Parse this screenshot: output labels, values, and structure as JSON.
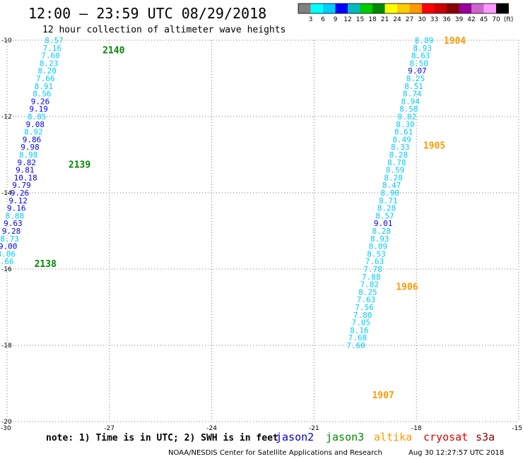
{
  "title": "12:00 – 23:59 UTC 08/29/2018",
  "subtitle": "12 hour collection of altimeter wave heights",
  "note": "note: 1) Time is in UTC; 2) SWH is in feet",
  "credit_left": "NOAA/NESDIS Center for Satellite Applications and Research",
  "credit_right": "Aug 30 12:27:57 UTC 2018",
  "satellites": [
    {
      "name": "jason2",
      "color": "#0000cc"
    },
    {
      "name": "jason3",
      "color": "#008800"
    },
    {
      "name": "altika",
      "color": "#ff9900"
    },
    {
      "name": "cryosat",
      "color": "#dd0000"
    },
    {
      "name": "s3a",
      "color": "#880000"
    }
  ],
  "colorbar": {
    "colors": [
      "#808080",
      "#00ffff",
      "#00ccff",
      "#0000ff",
      "#00bbbb",
      "#00cc00",
      "#008800",
      "#ffff00",
      "#ffcc00",
      "#ff9900",
      "#ff0000",
      "#cc0000",
      "#880000",
      "#990099",
      "#cc66cc",
      "#ff99ff",
      "#000000"
    ],
    "labels": [
      "3",
      "6",
      "9",
      "12",
      "15",
      "18",
      "21",
      "24",
      "27",
      "30",
      "33",
      "36",
      "39",
      "42",
      "45",
      "70",
      "(ft)"
    ]
  },
  "chart_data": {
    "type": "scatter",
    "xlim": [
      -30,
      -15
    ],
    "ylim": [
      -20,
      -10
    ],
    "xticks": [
      -30,
      -27,
      -24,
      -21,
      -18,
      -15
    ],
    "yticks": [
      -10,
      -12,
      -14,
      -16,
      -18,
      -20
    ],
    "grid": true,
    "tracks": [
      {
        "satellite": "jason3",
        "points": [
          {
            "x": -28.9,
            "y": -10.0,
            "v": "8.57"
          },
          {
            "x": -28.95,
            "y": -10.2,
            "v": "7.16"
          },
          {
            "x": -29.0,
            "y": -10.4,
            "v": "7.60"
          },
          {
            "x": -29.05,
            "y": -10.6,
            "v": "8.23"
          },
          {
            "x": -29.1,
            "y": -10.8,
            "v": "8.20"
          },
          {
            "x": -29.15,
            "y": -11.0,
            "v": "7.66"
          },
          {
            "x": -29.2,
            "y": -11.2,
            "v": "8.91"
          },
          {
            "x": -29.25,
            "y": -11.4,
            "v": "8.56"
          },
          {
            "x": -29.3,
            "y": -11.6,
            "v": "9.26"
          },
          {
            "x": -29.35,
            "y": -11.8,
            "v": "9.19"
          },
          {
            "x": -29.4,
            "y": -12.0,
            "v": "8.85"
          },
          {
            "x": -29.45,
            "y": -12.2,
            "v": "9.08"
          },
          {
            "x": -29.5,
            "y": -12.4,
            "v": "8.92"
          },
          {
            "x": -29.55,
            "y": -12.6,
            "v": "9.86"
          },
          {
            "x": -29.6,
            "y": -12.8,
            "v": "9.98"
          },
          {
            "x": -29.65,
            "y": -13.0,
            "v": "8.98"
          },
          {
            "x": -29.7,
            "y": -13.2,
            "v": "9.82"
          },
          {
            "x": -29.75,
            "y": -13.4,
            "v": "9.81"
          },
          {
            "x": -29.8,
            "y": -13.6,
            "v": "10.18"
          },
          {
            "x": -29.85,
            "y": -13.8,
            "v": "9.79"
          },
          {
            "x": -29.9,
            "y": -14.0,
            "v": "9.26"
          },
          {
            "x": -29.95,
            "y": -14.2,
            "v": "9.12"
          },
          {
            "x": -30.0,
            "y": -14.4,
            "v": "9.16"
          },
          {
            "x": -30.05,
            "y": -14.6,
            "v": "8.88"
          },
          {
            "x": -30.1,
            "y": -14.8,
            "v": "9.63"
          },
          {
            "x": -30.15,
            "y": -15.0,
            "v": "9.28"
          },
          {
            "x": -30.2,
            "y": -15.2,
            "v": "8.73"
          },
          {
            "x": -30.25,
            "y": -15.4,
            "v": "9.00"
          },
          {
            "x": -30.3,
            "y": -15.6,
            "v": "8.06"
          },
          {
            "x": -30.35,
            "y": -15.8,
            "v": "8.66"
          }
        ],
        "passes": [
          {
            "label": "2140",
            "x": -27.2,
            "y": -10.25
          },
          {
            "label": "2139",
            "x": -28.2,
            "y": -13.25
          },
          {
            "label": "2138",
            "x": -29.2,
            "y": -15.85
          }
        ]
      },
      {
        "satellite": "altika",
        "points": [
          {
            "x": -18.05,
            "y": -10.0,
            "v": "8.89"
          },
          {
            "x": -18.1,
            "y": -10.2,
            "v": "8.93"
          },
          {
            "x": -18.15,
            "y": -10.4,
            "v": "8.63"
          },
          {
            "x": -18.2,
            "y": -10.6,
            "v": "8.50"
          },
          {
            "x": -18.25,
            "y": -10.8,
            "v": "9.07"
          },
          {
            "x": -18.3,
            "y": -11.0,
            "v": "8.25"
          },
          {
            "x": -18.35,
            "y": -11.2,
            "v": "8.51"
          },
          {
            "x": -18.4,
            "y": -11.4,
            "v": "8.74"
          },
          {
            "x": -18.45,
            "y": -11.6,
            "v": "8.94"
          },
          {
            "x": -18.5,
            "y": -11.8,
            "v": "8.58"
          },
          {
            "x": -18.55,
            "y": -12.0,
            "v": "8.82"
          },
          {
            "x": -18.6,
            "y": -12.2,
            "v": "8.30"
          },
          {
            "x": -18.65,
            "y": -12.4,
            "v": "8.61"
          },
          {
            "x": -18.7,
            "y": -12.6,
            "v": "8.49"
          },
          {
            "x": -18.75,
            "y": -12.8,
            "v": "8.33"
          },
          {
            "x": -18.8,
            "y": -13.0,
            "v": "8.28"
          },
          {
            "x": -18.85,
            "y": -13.2,
            "v": "8.78"
          },
          {
            "x": -18.9,
            "y": -13.4,
            "v": "8.59"
          },
          {
            "x": -18.95,
            "y": -13.6,
            "v": "8.28"
          },
          {
            "x": -19.0,
            "y": -13.8,
            "v": "8.47"
          },
          {
            "x": -19.05,
            "y": -14.0,
            "v": "8.90"
          },
          {
            "x": -19.1,
            "y": -14.2,
            "v": "8.71"
          },
          {
            "x": -19.15,
            "y": -14.4,
            "v": "8.28"
          },
          {
            "x": -19.2,
            "y": -14.6,
            "v": "8.57"
          },
          {
            "x": -19.25,
            "y": -14.8,
            "v": "9.01"
          },
          {
            "x": -19.3,
            "y": -15.0,
            "v": "8.28"
          },
          {
            "x": -19.35,
            "y": -15.2,
            "v": "8.93"
          },
          {
            "x": -19.4,
            "y": -15.4,
            "v": "8.09"
          },
          {
            "x": -19.45,
            "y": -15.6,
            "v": "8.53"
          },
          {
            "x": -19.5,
            "y": -15.8,
            "v": "7.63"
          },
          {
            "x": -19.55,
            "y": -16.0,
            "v": "7.78"
          },
          {
            "x": -19.6,
            "y": -16.2,
            "v": "7.88"
          },
          {
            "x": -19.65,
            "y": -16.4,
            "v": "7.82"
          },
          {
            "x": -19.7,
            "y": -16.6,
            "v": "8.25"
          },
          {
            "x": -19.75,
            "y": -16.8,
            "v": "7.63"
          },
          {
            "x": -19.8,
            "y": -17.0,
            "v": "7.56"
          },
          {
            "x": -19.85,
            "y": -17.2,
            "v": "7.80"
          },
          {
            "x": -19.9,
            "y": -17.4,
            "v": "7.05"
          },
          {
            "x": -19.95,
            "y": -17.6,
            "v": "8.16"
          },
          {
            "x": -20.0,
            "y": -17.8,
            "v": "7.68"
          },
          {
            "x": -20.05,
            "y": -18.0,
            "v": "7.60"
          }
        ],
        "passes": [
          {
            "label": "1904",
            "x": -17.2,
            "y": -10.0
          },
          {
            "label": "1905",
            "x": -17.8,
            "y": -12.75
          },
          {
            "label": "1906",
            "x": -18.6,
            "y": -16.45
          },
          {
            "label": "1907",
            "x": -19.3,
            "y": -19.3
          }
        ]
      }
    ]
  }
}
